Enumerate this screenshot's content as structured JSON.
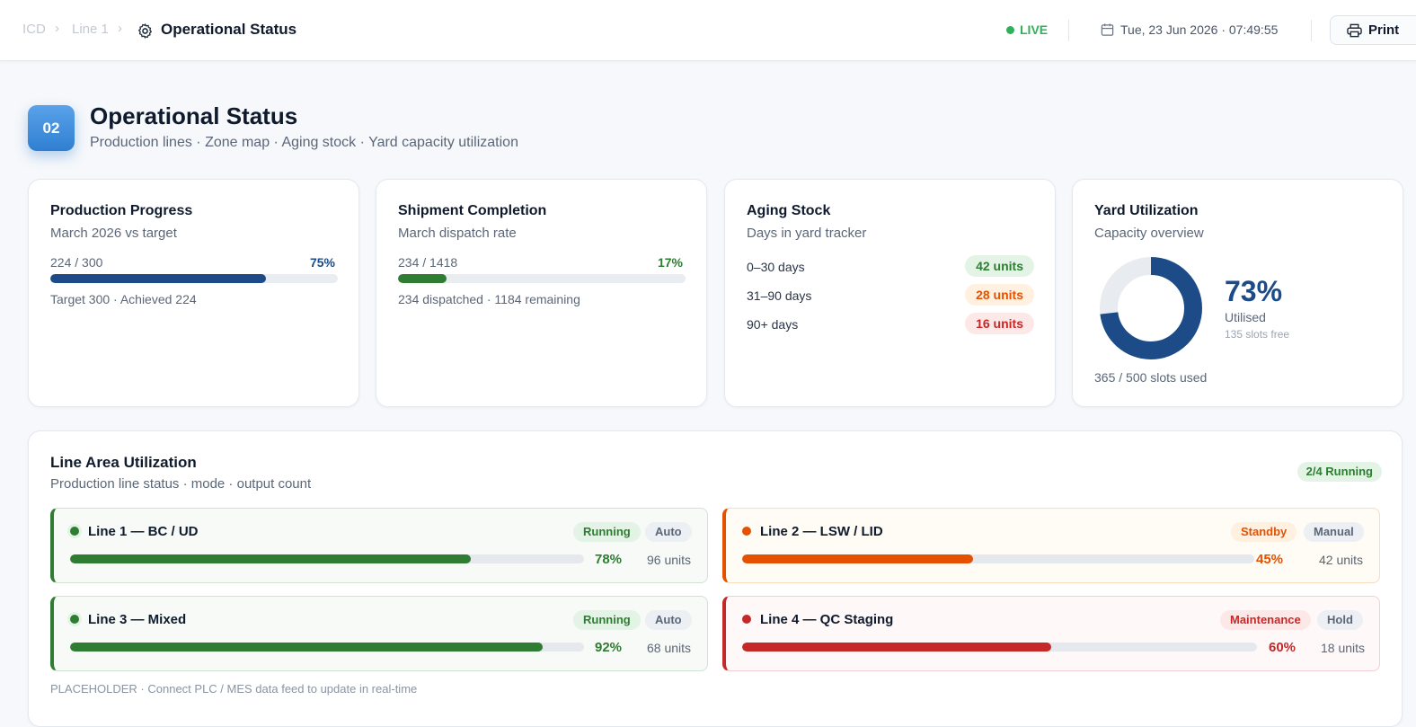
{
  "breadcrumb": {
    "root": "ICD",
    "line": "Line 1",
    "current": "Operational Status"
  },
  "header": {
    "live_label": "LIVE",
    "datetime": "Tue, 23 Jun 2026 · 07:49:55",
    "print_label": "Print"
  },
  "section": {
    "number": "02",
    "title": "Operational Status",
    "subtitle": "Production lines · Zone map · Aging stock · Yard capacity utilization"
  },
  "production": {
    "title": "Production Progress",
    "subtitle": "March 2026 vs target",
    "ratio": "224 / 300",
    "pct_label": "75%",
    "progress": 0.75,
    "footer": "Target 300 · Achieved 224",
    "color": "#1c4b87"
  },
  "shipment": {
    "title": "Shipment Completion",
    "subtitle": "March dispatch rate",
    "ratio": "234 / 1418",
    "pct_label": "17%",
    "progress": 0.17,
    "footer": "234 dispatched · 1184 remaining",
    "color": "#2e7d32"
  },
  "aging": {
    "title": "Aging Stock",
    "subtitle": "Days in yard tracker",
    "rows": [
      {
        "label": "0–30 days",
        "value": "42 units",
        "fg": "#2e7d32",
        "bg": "#e3f3e5"
      },
      {
        "label": "31–90 days",
        "value": "28 units",
        "fg": "#e65100",
        "bg": "#fff0df"
      },
      {
        "label": "90+ days",
        "value": "16 units",
        "fg": "#c62828",
        "bg": "#fde8e8"
      }
    ]
  },
  "yard": {
    "title": "Yard Utilization",
    "subtitle": "Capacity overview",
    "pct_label": "73%",
    "utilization": 0.73,
    "utilised_label": "Utilised",
    "free_label": "135 slots free",
    "footer": "365 / 500 slots used",
    "color": "#1c4b87"
  },
  "lines": {
    "title": "Line Area Utilization",
    "subtitle": "Production line status · mode · output count",
    "badge": "2/4 Running",
    "items": [
      {
        "name": "Line 1 — BC / UD",
        "status": "Running",
        "mode": "Auto",
        "pct_label": "78%",
        "progress": 0.78,
        "units": "96 units",
        "accent": "#2e7d32",
        "status_fg": "#2e7d32",
        "status_bg": "#e3f3e5",
        "border": "#cfe3d2",
        "bg": "#f7faf7"
      },
      {
        "name": "Line 2 — LSW / LID",
        "status": "Standby",
        "mode": "Manual",
        "pct_label": "45%",
        "progress": 0.45,
        "units": "42 units",
        "accent": "#e65100",
        "status_fg": "#e65100",
        "status_bg": "#fff0df",
        "border": "#f7dcbd",
        "bg": "#fffbf5"
      },
      {
        "name": "Line 3 — Mixed",
        "status": "Running",
        "mode": "Auto",
        "pct_label": "92%",
        "progress": 0.92,
        "units": "68 units",
        "accent": "#2e7d32",
        "status_fg": "#2e7d32",
        "status_bg": "#e3f3e5",
        "border": "#cfe3d2",
        "bg": "#f7faf7"
      },
      {
        "name": "Line 4 — QC Staging",
        "status": "Maintenance",
        "mode": "Hold",
        "pct_label": "60%",
        "progress": 0.6,
        "units": "18 units",
        "accent": "#c62828",
        "status_fg": "#c62828",
        "status_bg": "#fde8e8",
        "border": "#f3cfd3",
        "bg": "#fff8f9"
      }
    ],
    "footnote": "PLACEHOLDER · Connect PLC / MES data feed to update in real-time"
  }
}
